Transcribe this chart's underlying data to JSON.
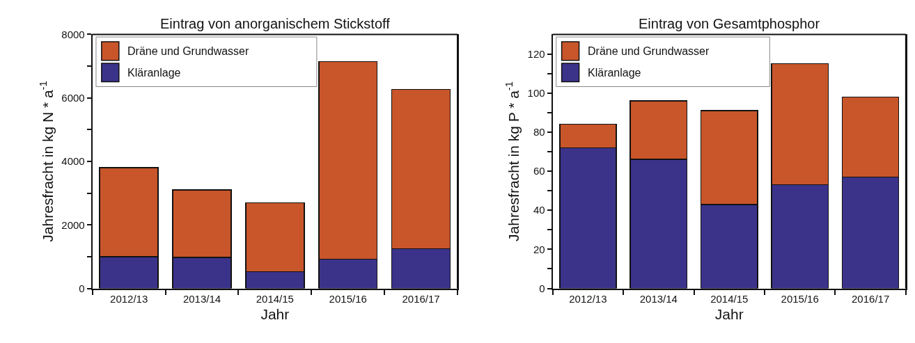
{
  "chart_data": [
    {
      "type": "bar",
      "title": "Eintrag von anorganischem Stickstoff",
      "xlabel": "Jahr",
      "ylabel": "Jahresfracht in kg N * a$^{-1}$",
      "stacked": true,
      "legend": "top left",
      "categories": [
        "2012/13",
        "2013/14",
        "2014/15",
        "2015/16",
        "2016/17"
      ],
      "series": [
        {
          "name": "Kläranlage",
          "color": "#3b338a",
          "values": [
            1000,
            980,
            530,
            920,
            1250
          ]
        },
        {
          "name": "Dräne und Grundwasser",
          "color": "#c8562a",
          "values": [
            2800,
            2120,
            2170,
            6230,
            5020
          ]
        }
      ],
      "ylim": [
        0,
        8000
      ],
      "yticks": [
        0,
        {
          "value": 1000,
          "label": null
        },
        2000,
        {
          "value": 3000,
          "label": null
        },
        4000,
        {
          "value": 5000,
          "label": null
        },
        6000,
        {
          "value": 7000,
          "label": null
        },
        8000
      ]
    },
    {
      "type": "bar",
      "title": "Eintrag von Gesamtphosphor",
      "xlabel": "Jahr",
      "ylabel": "Jahresfracht in kg P * a$^{-1}$",
      "stacked": true,
      "legend": "top left",
      "categories": [
        "2012/13",
        "2013/14",
        "2014/15",
        "2015/16",
        "2016/17"
      ],
      "series": [
        {
          "name": "Kläranlage",
          "color": "#3b338a",
          "values": [
            72,
            66,
            43,
            53,
            57
          ]
        },
        {
          "name": "Dräne und Grundwasser",
          "color": "#c8562a",
          "values": [
            12,
            30,
            48,
            62,
            41
          ]
        }
      ],
      "ylim": [
        0,
        130
      ],
      "yticks": [
        0,
        {
          "value": 10,
          "label": null
        },
        20,
        {
          "value": 30,
          "label": null
        },
        40,
        {
          "value": 50,
          "label": null
        },
        60,
        {
          "value": 70,
          "label": null
        },
        80,
        {
          "value": 90,
          "label": null
        },
        100,
        {
          "value": 110,
          "label": null
        },
        120
      ]
    }
  ]
}
